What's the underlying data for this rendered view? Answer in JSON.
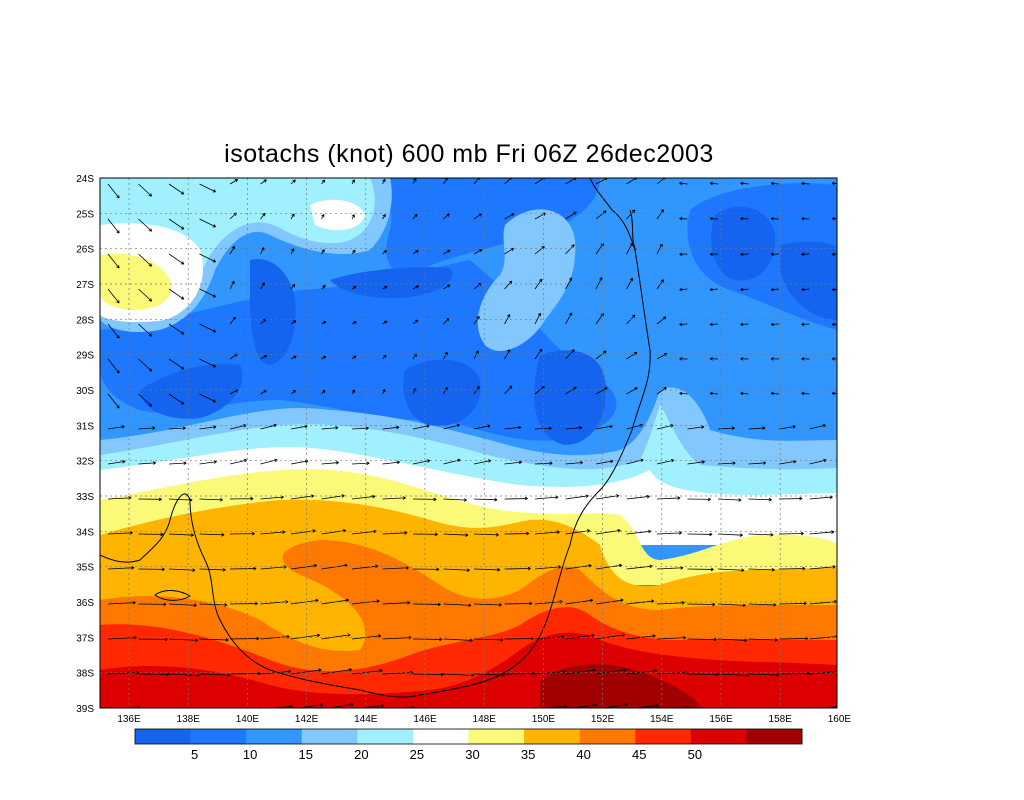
{
  "title": "isotachs (knot) 600 mb Fri 06Z 26dec2003",
  "lat_labels": [
    "24S",
    "25S",
    "26S",
    "27S",
    "28S",
    "29S",
    "30S",
    "31S",
    "32S",
    "33S",
    "34S",
    "35S",
    "36S",
    "37S",
    "38S",
    "39S"
  ],
  "lon_labels": [
    "136E",
    "138E",
    "140E",
    "142E",
    "144E",
    "146E",
    "148E",
    "150E",
    "152E",
    "154E",
    "156E",
    "158E",
    "160E"
  ],
  "colorbar": {
    "labels": [
      "5",
      "10",
      "15",
      "20",
      "25",
      "30",
      "35",
      "40",
      "45",
      "50"
    ],
    "colors": [
      "#1464f0",
      "#1e78ff",
      "#3296ff",
      "#82c8ff",
      "#a0f0ff",
      "#ffffff",
      "#fafa78",
      "#ffb400",
      "#ff7800",
      "#ff2800",
      "#dc0000",
      "#a00000"
    ]
  },
  "chart_data": {
    "type": "heatmap",
    "title": "isotachs (knot) 600 mb Fri 06Z 26dec2003",
    "xrange": [
      135.5,
      160
    ],
    "yrange": [
      -39,
      -24
    ],
    "contour_levels": [
      5,
      10,
      15,
      20,
      25,
      30,
      35,
      40,
      45,
      50
    ]
  }
}
